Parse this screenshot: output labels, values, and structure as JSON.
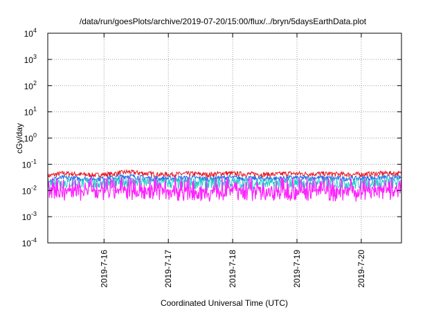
{
  "chart_data": {
    "type": "line",
    "title": "/data/run/goesPlots/archive/2019-07-20/15:00/flux/../bryn/5daysEarthData.plot",
    "xlabel": "Coordinated Universal Time (UTC)",
    "ylabel": "cGy/day",
    "yscale": "log",
    "ylim": [
      0.0001,
      10000
    ],
    "xlim": [
      "2019-07-15 03:00",
      "2019-07-20 15:00"
    ],
    "grid": true,
    "y_ticks": [
      {
        "value": 0.0001,
        "base": "10",
        "exp": "-4"
      },
      {
        "value": 0.001,
        "base": "10",
        "exp": "-3"
      },
      {
        "value": 0.01,
        "base": "10",
        "exp": "-2"
      },
      {
        "value": 0.1,
        "base": "10",
        "exp": "-1"
      },
      {
        "value": 1,
        "base": "10",
        "exp": "0"
      },
      {
        "value": 10,
        "base": "10",
        "exp": "1"
      },
      {
        "value": 100,
        "base": "10",
        "exp": "2"
      },
      {
        "value": 1000,
        "base": "10",
        "exp": "3"
      },
      {
        "value": 10000,
        "base": "10",
        "exp": "4"
      }
    ],
    "x_ticks": [
      "2019-7-16",
      "2019-7-17",
      "2019-7-18",
      "2019-7-19",
      "2019-7-20"
    ],
    "series": [
      {
        "color": "#e8141e",
        "x_hours": [
          0,
          6,
          12,
          18,
          24,
          30,
          36,
          42,
          48,
          54,
          60,
          66,
          72,
          78,
          84,
          90,
          96,
          102,
          108,
          114,
          120,
          126,
          132,
          135
        ],
        "values": [
          0.035,
          0.045,
          0.04,
          0.038,
          0.042,
          0.05,
          0.044,
          0.04,
          0.041,
          0.043,
          0.039,
          0.045,
          0.042,
          0.041,
          0.04,
          0.044,
          0.042,
          0.043,
          0.041,
          0.04,
          0.042,
          0.045,
          0.043,
          0.04
        ]
      },
      {
        "color": "#1e6ee6",
        "x_hours": [
          0,
          6,
          12,
          18,
          24,
          30,
          36,
          42,
          48,
          54,
          60,
          66,
          72,
          78,
          84,
          90,
          96,
          102,
          108,
          114,
          120,
          126,
          132,
          135
        ],
        "values": [
          0.025,
          0.03,
          0.028,
          0.027,
          0.03,
          0.035,
          0.03,
          0.028,
          0.029,
          0.03,
          0.027,
          0.031,
          0.029,
          0.028,
          0.028,
          0.03,
          0.029,
          0.03,
          0.028,
          0.028,
          0.029,
          0.031,
          0.03,
          0.028
        ]
      },
      {
        "color": "#22c8c8",
        "x_hours": [
          0,
          6,
          12,
          18,
          24,
          30,
          36,
          42,
          48,
          54,
          60,
          66,
          72,
          78,
          84,
          90,
          96,
          102,
          108,
          114,
          120,
          126,
          132,
          135
        ],
        "values": [
          0.02,
          0.022,
          0.021,
          0.02,
          0.022,
          0.024,
          0.022,
          0.021,
          0.021,
          0.022,
          0.02,
          0.023,
          0.021,
          0.021,
          0.02,
          0.022,
          0.021,
          0.022,
          0.021,
          0.02,
          0.021,
          0.023,
          0.022,
          0.021
        ]
      },
      {
        "color": "#ff22ff",
        "x_hours": [
          0,
          6,
          12,
          18,
          24,
          30,
          36,
          42,
          48,
          54,
          60,
          66,
          72,
          78,
          84,
          90,
          96,
          102,
          108,
          114,
          120,
          126,
          132,
          135
        ],
        "values": [
          0.008,
          0.009,
          0.0085,
          0.008,
          0.009,
          0.0095,
          0.009,
          0.0085,
          0.0088,
          0.009,
          0.0082,
          0.0092,
          0.0087,
          0.0085,
          0.0084,
          0.009,
          0.0087,
          0.009,
          0.0085,
          0.0083,
          0.0088,
          0.0093,
          0.009,
          0.0086
        ]
      }
    ]
  }
}
